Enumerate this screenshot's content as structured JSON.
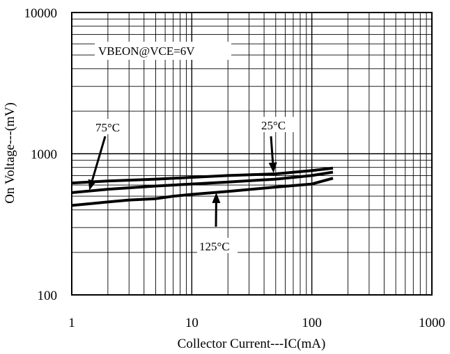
{
  "chart_data": {
    "type": "line",
    "title": "",
    "xlabel": "Collector Current---IC(mA)",
    "ylabel": "On Voltage---(mV)",
    "x_scale": "log",
    "y_scale": "log",
    "xlim": [
      1,
      1000
    ],
    "ylim": [
      100,
      10000
    ],
    "grid": true,
    "x_ticks": [
      "1",
      "10",
      "100",
      "1000"
    ],
    "y_ticks": [
      "100",
      "1000",
      "10000"
    ],
    "condition_label": "VBEON@VCE=6V",
    "series": [
      {
        "name": "25°C",
        "x": [
          1,
          2,
          5,
          10,
          20,
          50,
          100,
          150
        ],
        "y": [
          620,
          640,
          660,
          680,
          700,
          720,
          760,
          790
        ]
      },
      {
        "name": "75°C",
        "x": [
          1,
          2,
          5,
          10,
          20,
          50,
          100,
          150
        ],
        "y": [
          530,
          560,
          590,
          610,
          630,
          660,
          700,
          740
        ]
      },
      {
        "name": "125°C",
        "x": [
          1,
          2,
          3,
          5,
          7,
          10,
          20,
          50,
          100,
          150
        ],
        "y": [
          430,
          455,
          470,
          480,
          500,
          515,
          540,
          580,
          610,
          670
        ]
      }
    ],
    "annotations": [
      {
        "label": "25°C",
        "points_to": "25°C",
        "target_x": 48,
        "target_y": 730
      },
      {
        "label": "75°C",
        "points_to": "75°C",
        "target_x": 1.4,
        "target_y": 550
      },
      {
        "label": "125°C",
        "points_to": "125°C",
        "target_x": 16,
        "target_y": 530
      }
    ]
  }
}
